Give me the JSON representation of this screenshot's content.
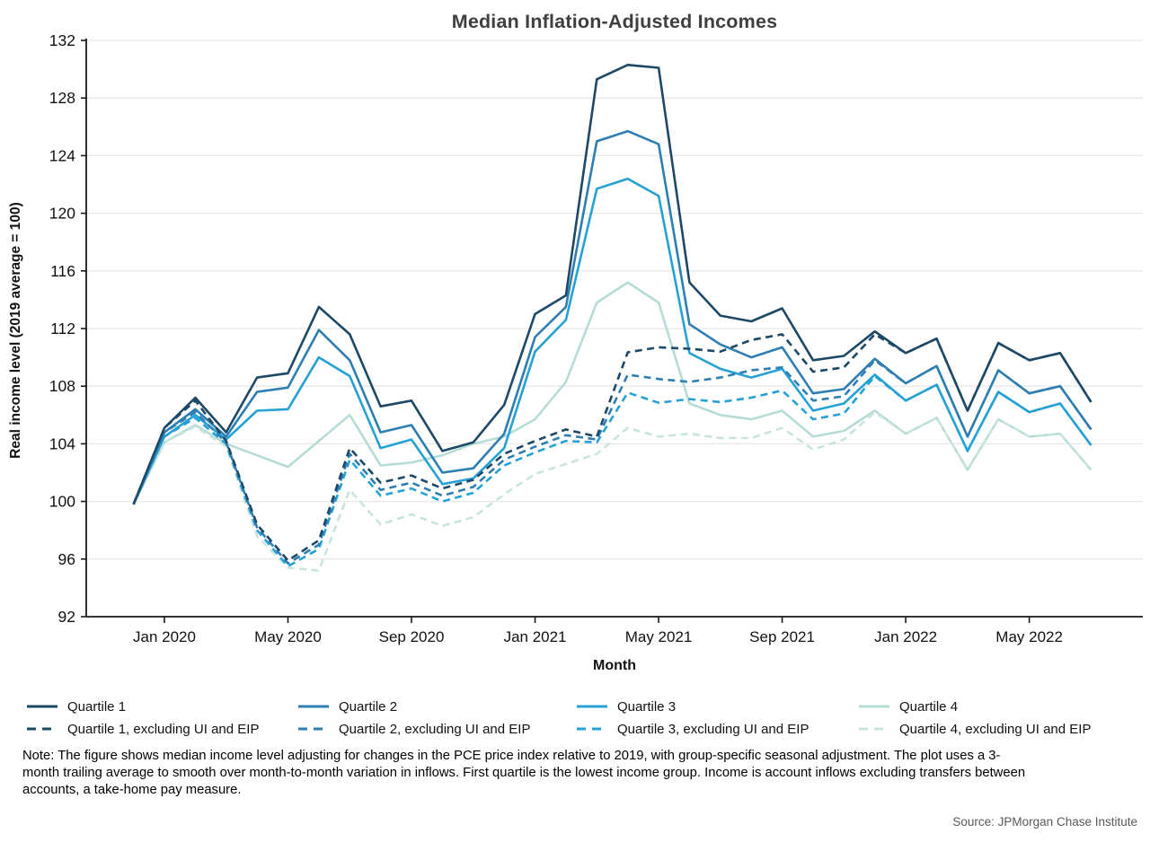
{
  "title": "Median Inflation-Adjusted Incomes",
  "y_axis": {
    "label": "Real income level (2019 average = 100)"
  },
  "x_axis": {
    "label": "Month"
  },
  "note": "Note: The figure shows median income level adjusting for changes in the PCE price index relative to 2019, with group-specific seasonal adjustment. The plot uses a 3-month trailing average to smooth over month-to-month variation in inflows. First quartile is the lowest income group. Income is account inflows excluding transfers between accounts, a take-home pay measure.",
  "source": "Source: JPMorgan Chase Institute",
  "colors": {
    "quartile1": "#1d4866",
    "quartile2": "#2e7eb2",
    "quartile3": "#26a1d5",
    "quartile4": "#b6dcd6",
    "quartile4_dashed": "#c7e4df",
    "gridline": "#e8e8e8",
    "axis": "#1a1a1a",
    "title_text": "#3f3f3f",
    "source_text": "#595959"
  },
  "chart_data": {
    "type": "line",
    "title": "Median Inflation-Adjusted Incomes",
    "xlabel": "Month",
    "ylabel": "Real income level (2019 average = 100)",
    "ylim": [
      92,
      132
    ],
    "y_ticks": [
      92,
      96,
      100,
      104,
      108,
      112,
      116,
      120,
      124,
      128,
      132
    ],
    "grid": true,
    "legend_position": "bottom",
    "x": [
      "2019-12",
      "2020-01",
      "2020-02",
      "2020-03",
      "2020-04",
      "2020-05",
      "2020-06",
      "2020-07",
      "2020-08",
      "2020-09",
      "2020-10",
      "2020-11",
      "2020-12",
      "2021-01",
      "2021-02",
      "2021-03",
      "2021-04",
      "2021-05",
      "2021-06",
      "2021-07",
      "2021-08",
      "2021-09",
      "2021-10",
      "2021-11",
      "2021-12",
      "2022-01",
      "2022-02",
      "2022-03",
      "2022-04",
      "2022-05",
      "2022-06",
      "2022-07"
    ],
    "x_tick_labels": [
      "Jan 2020",
      "May 2020",
      "Sep 2020",
      "Jan 2021",
      "May 2021",
      "Sep 2021",
      "Jan 2022",
      "May 2022"
    ],
    "x_tick_indices": [
      1,
      5,
      9,
      13,
      17,
      21,
      25,
      29
    ],
    "series": [
      {
        "name": "Quartile 1",
        "color": "#1d4866",
        "dash": false,
        "values": [
          99.8,
          105.1,
          107.2,
          104.8,
          108.6,
          108.9,
          113.5,
          111.6,
          106.6,
          107.0,
          103.5,
          104.1,
          106.7,
          113.0,
          114.3,
          129.3,
          130.3,
          130.1,
          115.2,
          112.9,
          112.5,
          113.4,
          109.8,
          110.1,
          111.8,
          110.3,
          111.3,
          106.3,
          111.0,
          109.8,
          110.3,
          106.9
        ]
      },
      {
        "name": "Quartile 2",
        "color": "#2e7eb2",
        "dash": false,
        "values": [
          99.8,
          104.8,
          106.4,
          104.5,
          107.6,
          107.9,
          111.9,
          109.8,
          104.8,
          105.3,
          102.0,
          102.3,
          104.7,
          111.4,
          113.5,
          125.0,
          125.7,
          124.8,
          112.3,
          110.9,
          110.0,
          110.7,
          107.5,
          107.8,
          109.9,
          108.2,
          109.4,
          104.5,
          109.1,
          107.5,
          108.0,
          105.0
        ]
      },
      {
        "name": "Quartile 3",
        "color": "#26a1d5",
        "dash": false,
        "values": [
          99.8,
          104.5,
          106.0,
          104.3,
          106.3,
          106.4,
          110.0,
          108.7,
          103.7,
          104.3,
          101.2,
          101.6,
          103.7,
          110.4,
          112.6,
          121.7,
          122.4,
          121.2,
          110.3,
          109.2,
          108.6,
          109.2,
          106.3,
          106.8,
          108.8,
          107.0,
          108.1,
          103.5,
          107.6,
          106.2,
          106.8,
          103.9
        ]
      },
      {
        "name": "Quartile 4",
        "color": "#b6dcd6",
        "dash": false,
        "values": [
          99.8,
          104.1,
          105.3,
          104.0,
          103.2,
          102.4,
          104.2,
          106.0,
          102.5,
          102.7,
          103.2,
          104.0,
          104.5,
          105.7,
          108.3,
          113.8,
          115.2,
          113.8,
          106.8,
          106.0,
          105.7,
          106.3,
          104.5,
          104.9,
          106.3,
          104.7,
          105.8,
          102.2,
          105.7,
          104.5,
          104.7,
          102.2
        ]
      },
      {
        "name": "Quartile 1, excluding UI and EIP",
        "color": "#1d4866",
        "dash": true,
        "values": [
          99.8,
          105.1,
          107.0,
          104.2,
          98.4,
          95.9,
          97.3,
          103.7,
          101.3,
          101.8,
          100.9,
          101.5,
          103.3,
          104.2,
          105.0,
          104.5,
          110.35,
          110.7,
          110.6,
          110.4,
          111.2,
          111.6,
          109.0,
          109.3,
          111.6,
          110.3,
          111.3,
          106.3,
          111.0,
          109.8,
          110.3,
          106.9
        ]
      },
      {
        "name": "Quartile 2, excluding UI and EIP",
        "color": "#2e7eb2",
        "dash": true,
        "values": [
          99.8,
          104.8,
          106.2,
          104.1,
          98.2,
          95.7,
          97.0,
          103.3,
          100.8,
          101.3,
          100.4,
          101.0,
          102.9,
          103.8,
          104.6,
          104.3,
          108.8,
          108.5,
          108.3,
          108.6,
          109.1,
          109.3,
          107.0,
          107.3,
          109.8,
          108.2,
          109.4,
          104.5,
          109.1,
          107.5,
          108.0,
          105.0
        ]
      },
      {
        "name": "Quartile 3, excluding UI and EIP",
        "color": "#26a1d5",
        "dash": true,
        "values": [
          99.8,
          104.5,
          105.8,
          104.0,
          98.0,
          95.5,
          96.7,
          102.9,
          100.4,
          100.9,
          100.0,
          100.6,
          102.5,
          103.4,
          104.2,
          104.1,
          107.55,
          106.85,
          107.1,
          106.9,
          107.2,
          107.7,
          105.7,
          106.1,
          108.7,
          107.0,
          108.1,
          103.5,
          107.6,
          106.2,
          106.8,
          103.9
        ]
      },
      {
        "name": "Quartile 4, excluding UI and EIP",
        "color": "#c7e4df",
        "dash": true,
        "values": [
          99.8,
          104.1,
          105.2,
          103.8,
          97.6,
          95.4,
          95.2,
          100.8,
          98.4,
          99.1,
          98.3,
          98.9,
          100.5,
          101.9,
          102.6,
          103.3,
          105.1,
          104.5,
          104.7,
          104.4,
          104.4,
          105.1,
          103.6,
          104.3,
          106.2,
          104.7,
          105.8,
          102.2,
          105.7,
          104.5,
          104.7,
          102.2
        ]
      }
    ]
  }
}
